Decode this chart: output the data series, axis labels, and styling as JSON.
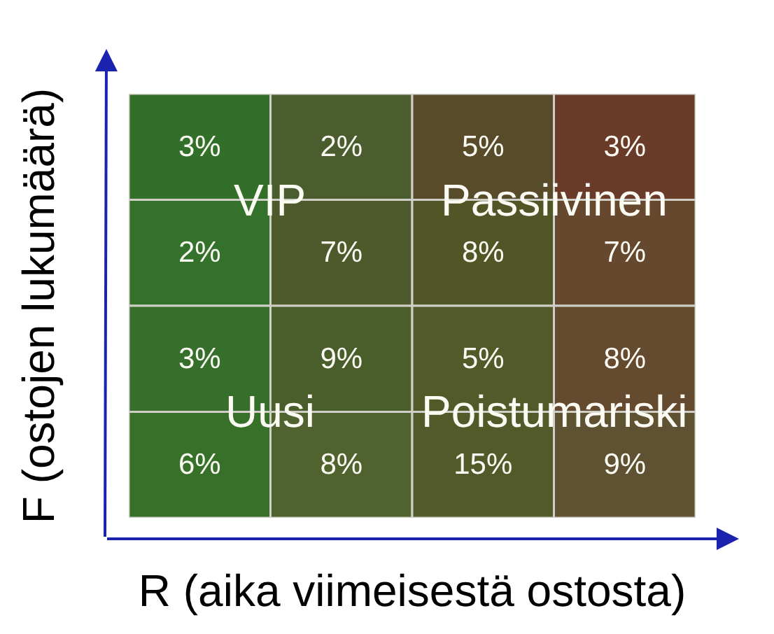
{
  "chart_data": {
    "type": "heatmap",
    "xlabel": "R (aika viimeisestä ostosta)",
    "ylabel": "F (ostojen lukumäärä)",
    "categories": [
      null,
      null,
      null,
      null
    ],
    "y_categories": [
      null,
      null,
      null,
      null
    ],
    "cells": [
      [
        3,
        2,
        5,
        3
      ],
      [
        2,
        7,
        8,
        7
      ],
      [
        3,
        9,
        5,
        8
      ],
      [
        6,
        8,
        15,
        9
      ]
    ],
    "cell_labels": [
      [
        "3%",
        "2%",
        "5%",
        "3%"
      ],
      [
        "2%",
        "7%",
        "8%",
        "7%"
      ],
      [
        "3%",
        "9%",
        "5%",
        "8%"
      ],
      [
        "6%",
        "8%",
        "15%",
        "9%"
      ]
    ],
    "colors": [
      "#32702a",
      "#4b5c2e",
      "#574b2a",
      "#6b3b29",
      "#34712b",
      "#4e5a2c",
      "#505626",
      "#65482e",
      "#356f2b",
      "#4a5e2c",
      "#525a2a",
      "#644a2e",
      "#367029",
      "#50622d",
      "#525a2a",
      "#5f5232"
    ],
    "annotations": [
      "VIP",
      "Passiivinen",
      "Uusi",
      "Poistumariski"
    ]
  }
}
